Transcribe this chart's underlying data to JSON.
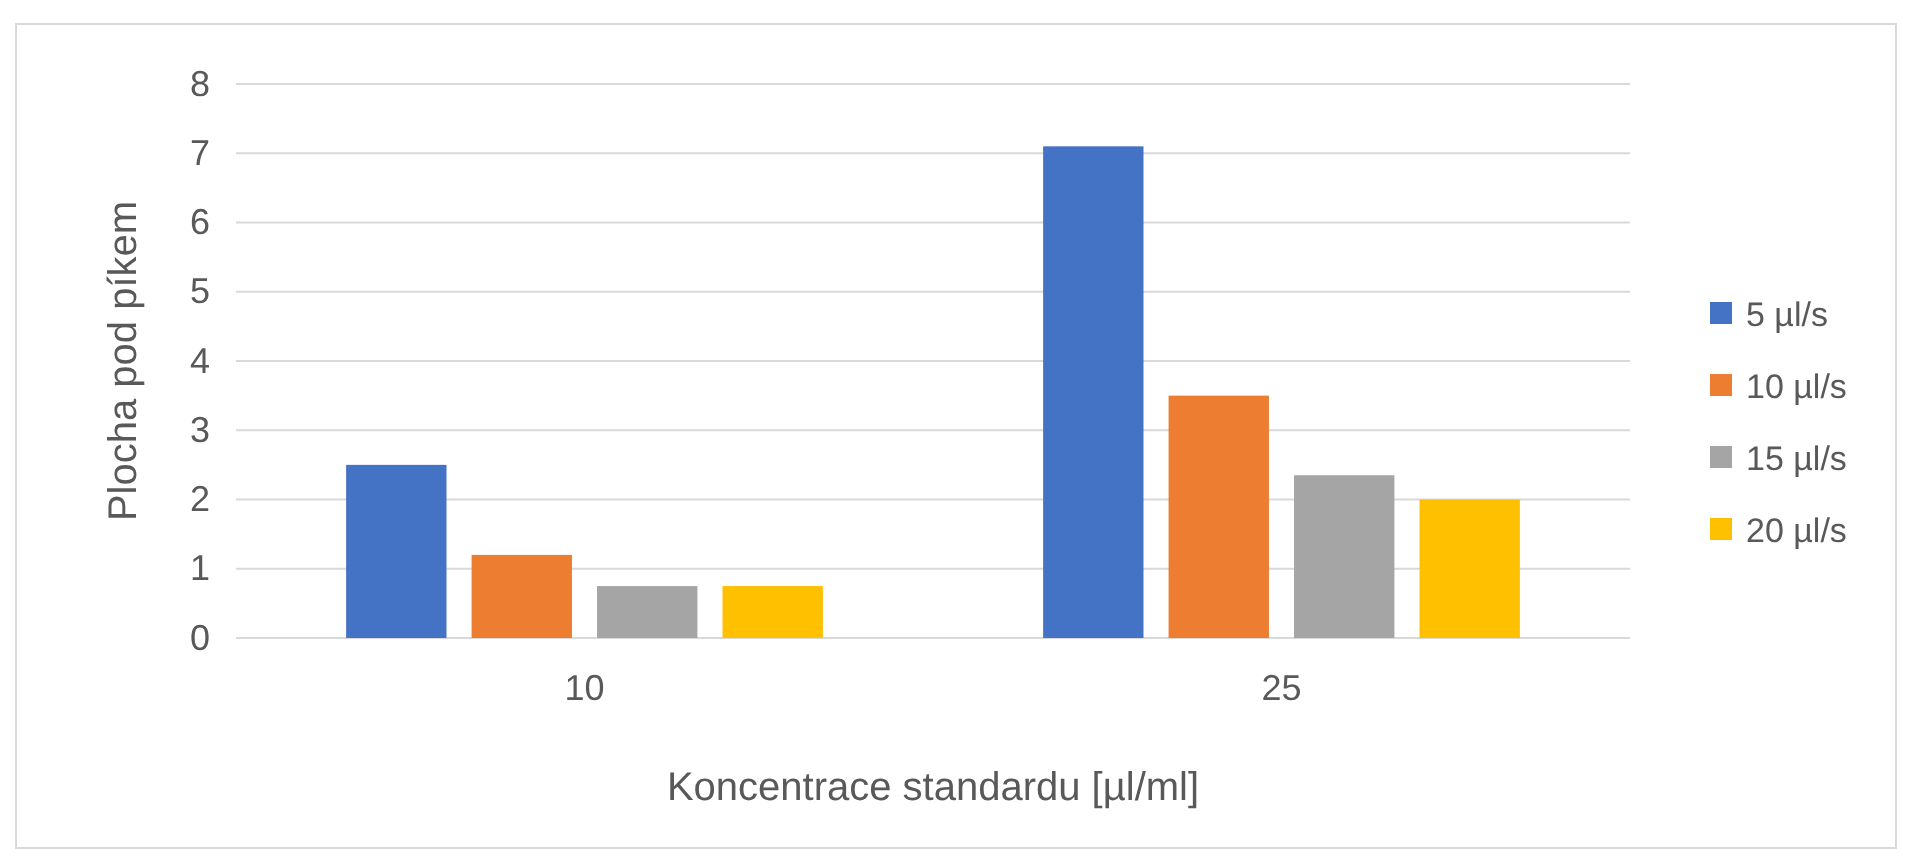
{
  "chart_data": {
    "type": "bar",
    "xlabel": "Koncentrace standardu [µl/ml]",
    "ylabel": "Plocha pod píkem",
    "categories": [
      "10",
      "25"
    ],
    "series": [
      {
        "name": "5 µl/s",
        "color": "#4472c4",
        "values": [
          2.5,
          7.1
        ]
      },
      {
        "name": "10 µl/s",
        "color": "#ed7d31",
        "values": [
          1.2,
          3.5
        ]
      },
      {
        "name": "15 µl/s",
        "color": "#a5a5a5",
        "values": [
          0.75,
          2.35
        ]
      },
      {
        "name": "20 µl/s",
        "color": "#ffc000",
        "values": [
          0.75,
          2.0
        ]
      }
    ],
    "ylim": [
      0,
      8
    ],
    "yticks": [
      0,
      1,
      2,
      3,
      4,
      5,
      6,
      7,
      8
    ],
    "grid": "y",
    "legend": "right"
  }
}
